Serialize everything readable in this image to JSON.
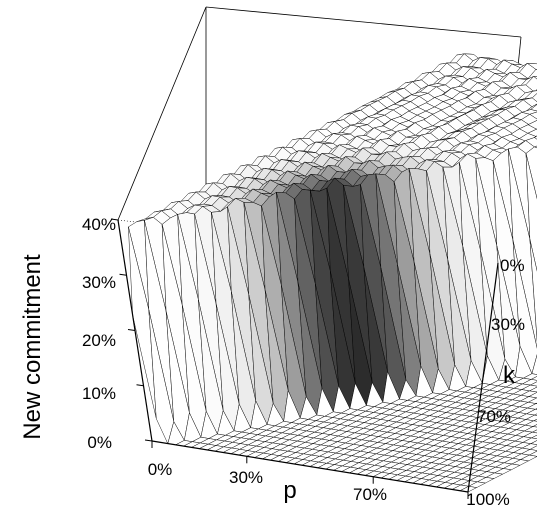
{
  "chart_data": {
    "type": "surface3d",
    "title": "",
    "zlabel": "New commitment",
    "xlabel": "p",
    "ylabel": "k",
    "z_ticks": [
      "0%",
      "10%",
      "20%",
      "30%",
      "40%"
    ],
    "x_ticks": [
      "0%",
      "30%",
      "70%",
      "100%"
    ],
    "y_ticks": [
      "0%",
      "30%",
      "70%"
    ],
    "zlim": [
      0,
      40
    ],
    "xlim": [
      0,
      100
    ],
    "ylim": [
      0,
      100
    ],
    "plateau_level": 38,
    "peak_location": {
      "p": 35,
      "k": 30
    },
    "edge_color": "#000000",
    "low_face_color": "#ffffff",
    "high_face_color": "#1e1e1e"
  }
}
